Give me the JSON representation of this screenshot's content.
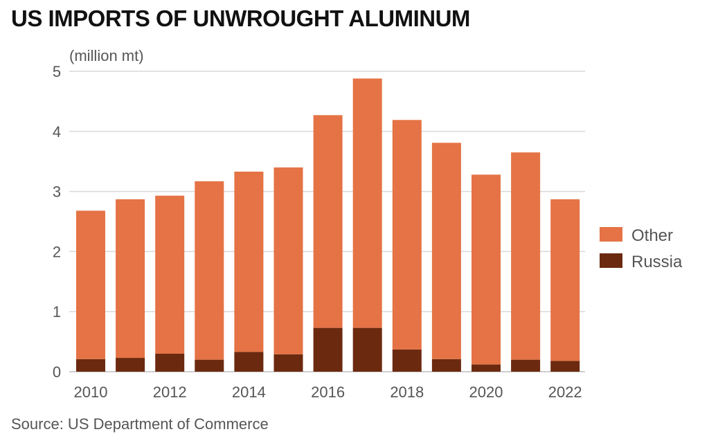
{
  "chart_title": "US IMPORTS OF UNWROUGHT ALUMINUM",
  "source": "Source: US Department of Commerce",
  "chart_data": {
    "type": "bar",
    "stacked": true,
    "unit_label": "(million mt)",
    "categories": [
      "2010",
      "2011",
      "2012",
      "2013",
      "2014",
      "2015",
      "2016",
      "2017",
      "2018",
      "2019",
      "2020",
      "2021",
      "2022"
    ],
    "x_tick_labels": [
      "2010",
      "",
      "2012",
      "",
      "2014",
      "",
      "2016",
      "",
      "2018",
      "",
      "2020",
      "",
      "2022"
    ],
    "series": [
      {
        "name": "Russia",
        "color": "#6b2a0f",
        "values": [
          0.21,
          0.23,
          0.3,
          0.2,
          0.33,
          0.29,
          0.73,
          0.73,
          0.37,
          0.21,
          0.12,
          0.2,
          0.18
        ]
      },
      {
        "name": "Other",
        "color": "#e57345",
        "values": [
          2.47,
          2.64,
          2.63,
          2.97,
          3.0,
          3.11,
          3.54,
          4.15,
          3.82,
          3.6,
          3.16,
          3.45,
          2.69
        ]
      }
    ],
    "legend_order": [
      "Other",
      "Russia"
    ],
    "legend_position": "right",
    "ylim": [
      0,
      5
    ],
    "yticks": [
      0,
      1,
      2,
      3,
      4,
      5
    ],
    "grid": true
  }
}
